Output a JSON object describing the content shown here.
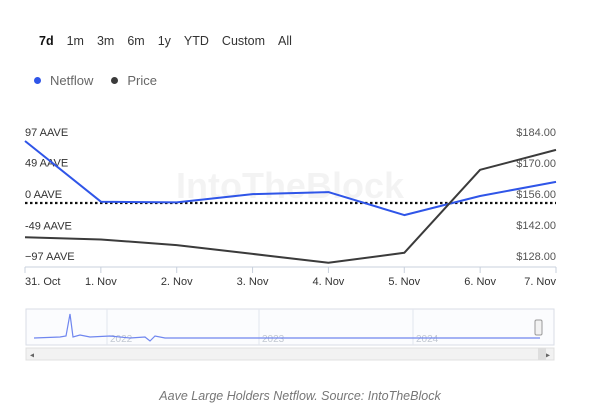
{
  "range_selector": [
    "7d",
    "1m",
    "3m",
    "6m",
    "1y",
    "YTD",
    "Custom",
    "All"
  ],
  "range_active": "7d",
  "legend": [
    {
      "label": "Netflow",
      "color": "#2f55e8",
      "icon": "circle-dot-icon"
    },
    {
      "label": "Price",
      "color": "#3b3b3b",
      "icon": "circle-dot-icon"
    }
  ],
  "watermark": "IntoTheBlock",
  "navigator": {
    "year_labels": [
      "2022",
      "2023",
      "2024"
    ]
  },
  "caption": "Aave Large Holders Netflow. Source: IntoTheBlock",
  "chart_data": {
    "type": "line",
    "x": [
      "31. Oct",
      "1. Nov",
      "2. Nov",
      "3. Nov",
      "4. Nov",
      "5. Nov",
      "6. Nov",
      "7. Nov"
    ],
    "y_left": {
      "ticks": [
        "97 AAVE",
        "49 AAVE",
        "0 AAVE",
        "-49 AAVE",
        "−97 AAVE"
      ],
      "values": [
        97,
        49,
        0,
        -49,
        -97
      ],
      "range": [
        -97,
        97
      ]
    },
    "y_right": {
      "ticks": [
        "$184.00",
        "$170.00",
        "$156.00",
        "$142.00",
        "$128.00"
      ],
      "values": [
        184,
        170,
        156,
        142,
        128
      ],
      "range": [
        128,
        184
      ]
    },
    "zero_line": "dotted",
    "series": [
      {
        "name": "Netflow",
        "axis": "left",
        "color": "#2f55e8",
        "values": [
          97,
          2,
          1,
          14,
          17,
          -19,
          11,
          33
        ]
      },
      {
        "name": "Price",
        "axis": "right",
        "color": "#3b3b3b",
        "values": [
          140.5,
          139.5,
          137,
          133,
          129,
          133.5,
          171,
          180
        ]
      }
    ]
  }
}
